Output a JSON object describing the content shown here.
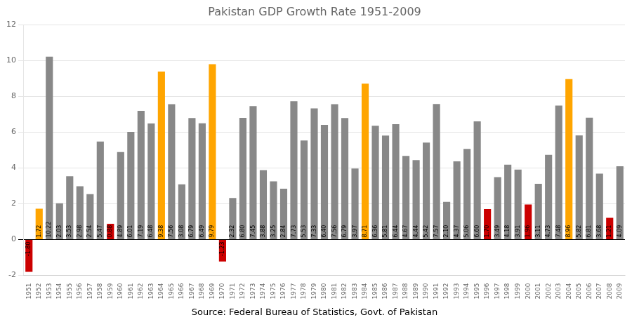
{
  "chart_data": {
    "type": "bar",
    "title": "Pakistan GDP Growth Rate 1951-2009",
    "annotations": [
      "Source: Federal Bureau of Statistics, Govt. of Pakistan"
    ],
    "categories": [
      1951,
      1952,
      1953,
      1954,
      1955,
      1956,
      1957,
      1958,
      1959,
      1960,
      1961,
      1962,
      1963,
      1964,
      1965,
      1966,
      1967,
      1968,
      1969,
      1970,
      1971,
      1972,
      1973,
      1974,
      1975,
      1976,
      1977,
      1978,
      1979,
      1980,
      1981,
      1982,
      1983,
      1984,
      1985,
      1986,
      1987,
      1988,
      1989,
      1990,
      1991,
      1992,
      1993,
      1994,
      1995,
      1996,
      1997,
      1998,
      1999,
      2000,
      2001,
      2002,
      2003,
      2004,
      2005,
      2006,
      2007,
      2008,
      2009
    ],
    "values": [
      -1.8,
      1.72,
      10.22,
      2.03,
      3.53,
      2.98,
      2.54,
      5.47,
      0.88,
      4.89,
      6.01,
      7.19,
      6.48,
      9.38,
      7.56,
      3.08,
      6.79,
      6.49,
      9.79,
      -1.23,
      2.32,
      6.8,
      7.45,
      3.88,
      3.25,
      2.84,
      7.73,
      5.53,
      7.33,
      6.4,
      7.56,
      6.79,
      3.97,
      8.71,
      6.36,
      5.81,
      6.44,
      4.67,
      4.44,
      5.42,
      7.57,
      2.1,
      4.37,
      5.06,
      6.6,
      1.7,
      3.49,
      4.18,
      3.91,
      1.96,
      3.11,
      4.73,
      7.48,
      8.96,
      5.82,
      6.81,
      3.68,
      1.21,
      4.09
    ],
    "value_labels": [
      "-1.80",
      "1.72",
      "10.22",
      "2.03",
      "3.53",
      "2.98",
      "2.54",
      "5.47",
      "0.88",
      "4.89",
      "6.01",
      "7.19",
      "6.48",
      "9.38",
      "7.56",
      "3.08",
      "6.79",
      "6.49",
      "9.79",
      "-1.23",
      "2.32",
      "6.80",
      "7.45",
      "3.88",
      "3.25",
      "2.84",
      "7.73",
      "5.53",
      "7.33",
      "6.40",
      "7.56",
      "6.79",
      "3.97",
      "8.71",
      "6.36",
      "5.81",
      "6.44",
      "4.67",
      "4.44",
      "5.42",
      "7.57",
      "2.10",
      "4.37",
      "5.06",
      "6.60",
      "1.70",
      "3.49",
      "4.18",
      "3.91",
      "1.96",
      "3.11",
      "4.73",
      "7.48",
      "8.96",
      "5.82",
      "6.81",
      "3.68",
      "1.21",
      "4.09"
    ],
    "colors": [
      "#CC0000",
      "#FFA500",
      "#888888",
      "#888888",
      "#888888",
      "#888888",
      "#888888",
      "#888888",
      "#CC0000",
      "#888888",
      "#888888",
      "#888888",
      "#888888",
      "#FFA500",
      "#888888",
      "#888888",
      "#888888",
      "#888888",
      "#FFA500",
      "#CC0000",
      "#888888",
      "#888888",
      "#888888",
      "#888888",
      "#888888",
      "#888888",
      "#888888",
      "#888888",
      "#888888",
      "#888888",
      "#888888",
      "#888888",
      "#888888",
      "#FFA500",
      "#888888",
      "#888888",
      "#888888",
      "#888888",
      "#888888",
      "#888888",
      "#888888",
      "#888888",
      "#888888",
      "#888888",
      "#888888",
      "#CC0000",
      "#888888",
      "#888888",
      "#888888",
      "#CC0000",
      "#888888",
      "#888888",
      "#888888",
      "#FFA500",
      "#888888",
      "#888888",
      "#888888",
      "#CC0000",
      "#888888"
    ],
    "data_labels": true,
    "ylim": [
      -2,
      12
    ],
    "yticks": [
      -2,
      0,
      2,
      4,
      6,
      8,
      10,
      12
    ],
    "grid": true
  }
}
